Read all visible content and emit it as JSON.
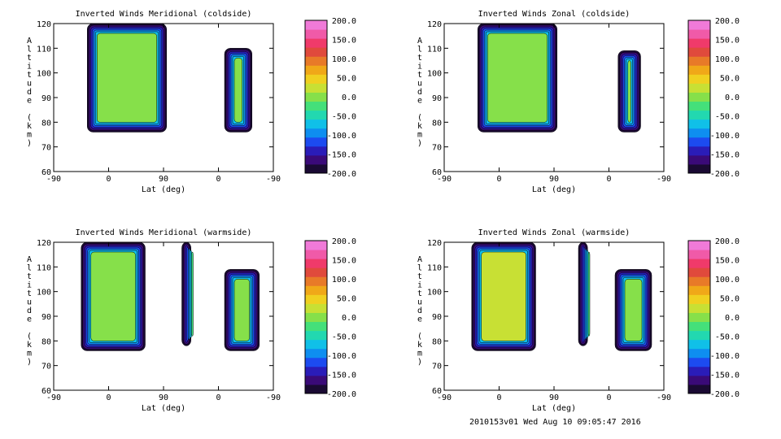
{
  "footer": "2010153v01 Wed Aug 10 09:05:47 2016",
  "colorbar": {
    "colors": [
      "#1a0a33",
      "#3a0a78",
      "#2a1cb8",
      "#1c4bf0",
      "#0e8ef0",
      "#10c0e8",
      "#22d8b0",
      "#44e07a",
      "#86e04a",
      "#c8e034",
      "#f0d020",
      "#f0a818",
      "#e87a28",
      "#e04a3c",
      "#f03a6a",
      "#f05aa8",
      "#f07ad8"
    ],
    "levels": [
      "200.0",
      "150.0",
      "100.0",
      "50.0",
      "0.0",
      "-50.0",
      "-100.0",
      "-150.0",
      "-200.0"
    ]
  },
  "chart_data": [
    {
      "type": "heatmap",
      "title": "Inverted Winds Meridional (coldside)",
      "xlabel": "Lat (deg)",
      "ylabel": "Altitude (km)",
      "xticks": [
        "-90",
        "0",
        "90",
        "0",
        "-90"
      ],
      "yticks": [
        "60",
        "70",
        "80",
        "90",
        "100",
        "110",
        "120"
      ],
      "ylim": [
        60,
        120
      ],
      "zlim": [
        -200,
        200
      ],
      "regions": [
        {
          "x": [
            -35,
            95
          ],
          "y": [
            76,
            120
          ],
          "mean": 10
        },
        {
          "x": [
            190,
            235
          ],
          "y": [
            76,
            110
          ],
          "mean": -10
        }
      ]
    },
    {
      "type": "heatmap",
      "title": "Inverted Winds Zonal (coldside)",
      "xlabel": "Lat (deg)",
      "ylabel": "Altitude (km)",
      "xticks": [
        "-90",
        "0",
        "90",
        "0",
        "-90"
      ],
      "yticks": [
        "60",
        "70",
        "80",
        "90",
        "100",
        "110",
        "120"
      ],
      "ylim": [
        60,
        120
      ],
      "zlim": [
        -200,
        200
      ],
      "regions": [
        {
          "x": [
            -35,
            95
          ],
          "y": [
            76,
            120
          ],
          "mean": 10
        },
        {
          "x": [
            195,
            232
          ],
          "y": [
            76,
            109
          ],
          "mean": -10
        }
      ]
    },
    {
      "type": "heatmap",
      "title": "Inverted Winds Meridional (warmside)",
      "xlabel": "Lat (deg)",
      "ylabel": "Altitude (km)",
      "xticks": [
        "-90",
        "0",
        "90",
        "0",
        "-90"
      ],
      "yticks": [
        "60",
        "70",
        "80",
        "90",
        "100",
        "110",
        "120"
      ],
      "ylim": [
        60,
        120
      ],
      "zlim": [
        -200,
        200
      ],
      "regions": [
        {
          "x": [
            -45,
            60
          ],
          "y": [
            76,
            120
          ],
          "mean": -10
        },
        {
          "x": [
            120,
            135
          ],
          "y": [
            78,
            120
          ],
          "mean": -20
        },
        {
          "x": [
            190,
            247
          ],
          "y": [
            76,
            109
          ],
          "mean": 0
        }
      ]
    },
    {
      "type": "heatmap",
      "title": "Inverted Winds Zonal (warmside)",
      "xlabel": "Lat (deg)",
      "ylabel": "Altitude (km)",
      "xticks": [
        "-90",
        "0",
        "90",
        "0",
        "-90"
      ],
      "yticks": [
        "60",
        "70",
        "80",
        "90",
        "100",
        "110",
        "120"
      ],
      "ylim": [
        60,
        120
      ],
      "zlim": [
        -200,
        200
      ],
      "regions": [
        {
          "x": [
            -45,
            60
          ],
          "y": [
            76,
            120
          ],
          "mean": 20
        },
        {
          "x": [
            130,
            145
          ],
          "y": [
            78,
            120
          ],
          "mean": -20
        },
        {
          "x": [
            190,
            250
          ],
          "y": [
            76,
            109
          ],
          "mean": 0
        }
      ]
    }
  ]
}
